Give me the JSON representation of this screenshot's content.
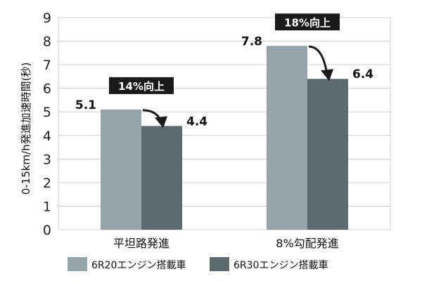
{
  "chart_data": {
    "type": "bar",
    "ylabel": "0-15km/h発進加速時間(秒)",
    "xlabel": "",
    "ylim": [
      0,
      9
    ],
    "yticks": [
      0,
      1,
      2,
      3,
      4,
      5,
      6,
      7,
      8,
      9
    ],
    "grid": true,
    "categories": [
      "平坦路発進",
      "8%勾配発進"
    ],
    "series": [
      {
        "name": "6R20エンジン搭載車",
        "values": [
          5.1,
          7.8
        ],
        "color": "#97a3ab",
        "labels": [
          "5.1",
          "7.8"
        ]
      },
      {
        "name": "6R30エンジン搭載車",
        "values": [
          4.4,
          6.4
        ],
        "color": "#5d6a70",
        "labels": [
          "4.4",
          "6.4"
        ]
      }
    ],
    "annotations": [
      "14%向上",
      "18%向上"
    ],
    "annotation_style": {
      "background": "#1a1a1a",
      "text_color": "#ffffff",
      "arrow_color": "#1a1a1a"
    },
    "gridline_color": "#cfcfcf",
    "legend_position": "bottom"
  }
}
